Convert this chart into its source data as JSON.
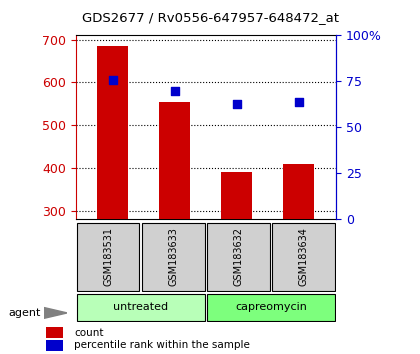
{
  "title": "GDS2677 / Rv0556-647957-648472_at",
  "samples": [
    "GSM183531",
    "GSM183633",
    "GSM183632",
    "GSM183634"
  ],
  "counts": [
    685,
    555,
    392,
    410
  ],
  "percentiles": [
    76,
    70,
    63,
    64
  ],
  "ylim_left": [
    280,
    710
  ],
  "ylim_right": [
    0,
    100
  ],
  "yticks_left": [
    300,
    400,
    500,
    600,
    700
  ],
  "yticks_right": [
    0,
    25,
    50,
    75,
    100
  ],
  "groups": [
    {
      "label": "untreated",
      "indices": [
        0,
        1
      ]
    },
    {
      "label": "capreomycin",
      "indices": [
        2,
        3
      ]
    }
  ],
  "group_colors": [
    "#b8ffb8",
    "#7dff7d"
  ],
  "agent_label": "agent",
  "bar_color": "#cc0000",
  "scatter_color": "#0000cc",
  "left_axis_color": "#cc0000",
  "right_axis_color": "#0000cc",
  "grid_color": "#000000",
  "sample_box_color": "#d0d0d0",
  "legend_count_label": "count",
  "legend_percentile_label": "percentile rank within the sample",
  "bar_width": 0.5
}
